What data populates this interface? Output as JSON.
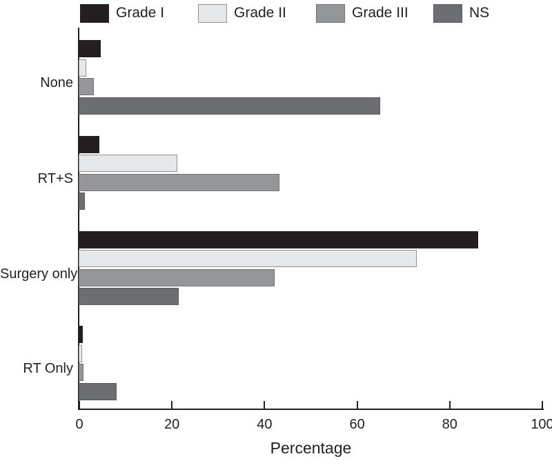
{
  "chart_data": {
    "type": "bar",
    "orientation": "horizontal",
    "title": "",
    "xlabel": "Percentage",
    "ylabel": "",
    "xlim": [
      0,
      100
    ],
    "xticks": [
      0,
      20,
      40,
      60,
      80,
      100
    ],
    "grid": false,
    "legend_position": "top",
    "categories": [
      "None",
      "RT+S",
      "Surgery only",
      "RT Only"
    ],
    "series": [
      {
        "name": "Grade I",
        "color": "#231f20",
        "border_color": "#231f20",
        "values": [
          4.8,
          4.5,
          86.3,
          0.9
        ]
      },
      {
        "name": "Grade II",
        "color": "#e6e7e8",
        "border_color": "#8e9093",
        "values": [
          1.7,
          21.3,
          73.0,
          0.8
        ]
      },
      {
        "name": "Grade III",
        "color": "#949699",
        "border_color": "#6f7073",
        "values": [
          3.3,
          43.4,
          42.3,
          1.1
        ]
      },
      {
        "name": "NS",
        "color": "#6d6e71",
        "border_color": "#58595b",
        "values": [
          65.2,
          1.4,
          21.6,
          8.2
        ]
      }
    ]
  }
}
